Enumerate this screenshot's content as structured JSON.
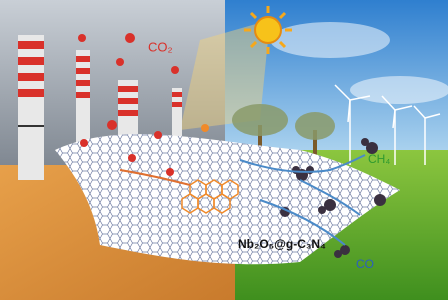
{
  "labels": {
    "reactant": "CO₂",
    "catalyst": "Nb₂O₅@g-C₃N₄",
    "product_methane": "CH₄",
    "product_monoxide": "CO"
  }
}
